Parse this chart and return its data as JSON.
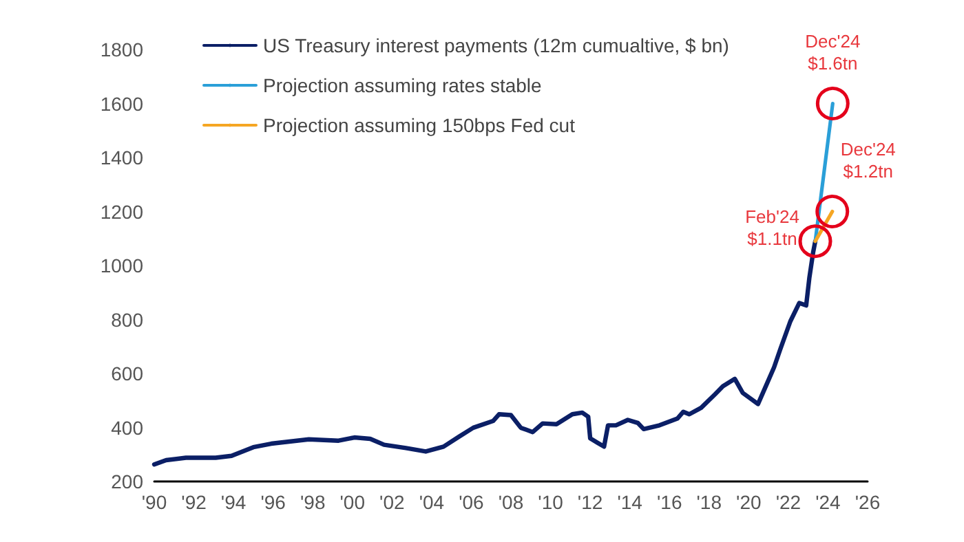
{
  "chart_data": {
    "type": "line",
    "xlim": [
      1990,
      2026
    ],
    "ylim": [
      200,
      1800
    ],
    "xticks": [
      {
        "value": 1990,
        "label": "'90"
      },
      {
        "value": 1992,
        "label": "'92"
      },
      {
        "value": 1994,
        "label": "'94"
      },
      {
        "value": 1996,
        "label": "'96"
      },
      {
        "value": 1998,
        "label": "'98"
      },
      {
        "value": 2000,
        "label": "'00"
      },
      {
        "value": 2002,
        "label": "'02"
      },
      {
        "value": 2004,
        "label": "'04"
      },
      {
        "value": 2006,
        "label": "'06"
      },
      {
        "value": 2008,
        "label": "'08"
      },
      {
        "value": 2010,
        "label": "'10"
      },
      {
        "value": 2012,
        "label": "'12"
      },
      {
        "value": 2014,
        "label": "'14"
      },
      {
        "value": 2016,
        "label": "'16"
      },
      {
        "value": 2018,
        "label": "'18"
      },
      {
        "value": 2020,
        "label": "'20"
      },
      {
        "value": 2022,
        "label": "'22"
      },
      {
        "value": 2024,
        "label": "'24"
      },
      {
        "value": 2026,
        "label": "'26"
      }
    ],
    "yticks": [
      200,
      400,
      600,
      800,
      1000,
      1200,
      1400,
      1600,
      1800
    ],
    "grid": false,
    "legend": "top left",
    "line_style": "solid",
    "series": [
      {
        "name": "US Treasury interest payments (12m cumualtive, $ bn)",
        "color": "#0b1f66",
        "x": [
          1990,
          1990.6,
          1991.6,
          1993.1,
          1993.9,
          1995,
          1995.9,
          1997.8,
          1999.3,
          2000.1,
          2000.9,
          2001.6,
          2002.7,
          2003.7,
          2004.6,
          2005.4,
          2006.1,
          2007.1,
          2007.4,
          2008,
          2008.5,
          2009.1,
          2009.6,
          2010.3,
          2011.1,
          2011.6,
          2011.9,
          2012,
          2012.4,
          2012.7,
          2012.9,
          2013.3,
          2013.9,
          2014.4,
          2014.7,
          2015.5,
          2016.4,
          2016.7,
          2017,
          2017.6,
          2018.3,
          2018.7,
          2019.3,
          2019.7,
          2020.47,
          2020.93,
          2021.28,
          2021.6,
          2022.1,
          2022.55,
          2022.9,
          2023.06,
          2023.25,
          2023.36
        ],
        "values": [
          263,
          279,
          288,
          288,
          295,
          327,
          340,
          356,
          351,
          363,
          358,
          336,
          324,
          311,
          329,
          367,
          399,
          424,
          449,
          446,
          399,
          383,
          415,
          412,
          449,
          455,
          440,
          360,
          342,
          329,
          408,
          408,
          428,
          417,
          394,
          408,
          433,
          458,
          449,
          473,
          523,
          553,
          580,
          528,
          487,
          564,
          623,
          691,
          793,
          861,
          852,
          954,
          1048,
          1090
        ]
      },
      {
        "name": "Projection assuming rates stable",
        "color": "#2a9fd8",
        "x": [
          2023.36,
          2024.24
        ],
        "values": [
          1090,
          1600
        ]
      },
      {
        "name": "Projection assuming 150bps Fed cut",
        "color": "#f5a623",
        "x": [
          2023.36,
          2024.22
        ],
        "values": [
          1090,
          1200
        ]
      }
    ],
    "annotations": [
      {
        "text": "Feb'24\n$1.1tn",
        "x": 2023.36,
        "y": 1090
      },
      {
        "text": "Dec'24\n$1.6tn",
        "x": 2024.24,
        "y": 1600
      },
      {
        "text": "Dec'24\n$1.2tn",
        "x": 2024.22,
        "y": 1200
      }
    ]
  }
}
